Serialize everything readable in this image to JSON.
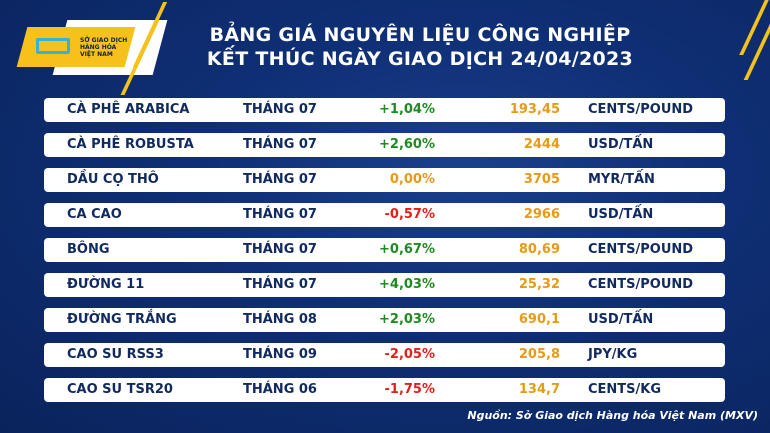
{
  "logo": {
    "text": [
      "SỞ GIAO DỊCH",
      "HÀNG HÓA",
      "VIỆT NAM"
    ]
  },
  "title": {
    "line1": "BẢNG GIÁ NGUYÊN LIỆU CÔNG NGHIỆP",
    "line2": "KẾT THÚC NGÀY GIAO DỊCH 24/04/2023"
  },
  "colors": {
    "up": "#1f8a1f",
    "down": "#e0201b",
    "flat": "#e69a15",
    "value": "#e69a15",
    "accent": "#f5c11a"
  },
  "rows": [
    {
      "name": "CÀ PHÊ ARABICA",
      "month": "THÁNG 07",
      "change": "+1,04%",
      "dir": "up",
      "price": "193,45",
      "unit": "CENTS/POUND"
    },
    {
      "name": "CÀ PHÊ ROBUSTA",
      "month": "THÁNG 07",
      "change": "+2,60%",
      "dir": "up",
      "price": "2444",
      "unit": "USD/TẤN"
    },
    {
      "name": "DẦU CỌ THÔ",
      "month": "THÁNG 07",
      "change": "0,00%",
      "dir": "flat",
      "price": "3705",
      "unit": "MYR/TẤN"
    },
    {
      "name": "CA CAO",
      "month": "THÁNG 07",
      "change": "-0,57%",
      "dir": "down",
      "price": "2966",
      "unit": "USD/TẤN"
    },
    {
      "name": "BÔNG",
      "month": "THÁNG 07",
      "change": "+0,67%",
      "dir": "up",
      "price": "80,69",
      "unit": "CENTS/POUND"
    },
    {
      "name": "ĐƯỜNG 11",
      "month": "THÁNG 07",
      "change": "+4,03%",
      "dir": "up",
      "price": "25,32",
      "unit": "CENTS/POUND"
    },
    {
      "name": "ĐƯỜNG TRẮNG",
      "month": "THÁNG 08",
      "change": "+2,03%",
      "dir": "up",
      "price": "690,1",
      "unit": "USD/TẤN"
    },
    {
      "name": "CAO SU RSS3",
      "month": "THÁNG 09",
      "change": "-2,05%",
      "dir": "down",
      "price": "205,8",
      "unit": "JPY/KG"
    },
    {
      "name": "CAO SU TSR20",
      "month": "THÁNG 06",
      "change": "-1,75%",
      "dir": "down",
      "price": "134,7",
      "unit": "CENTS/KG"
    }
  ],
  "source": "Nguồn: Sở Giao dịch Hàng hóa Việt Nam (MXV)"
}
